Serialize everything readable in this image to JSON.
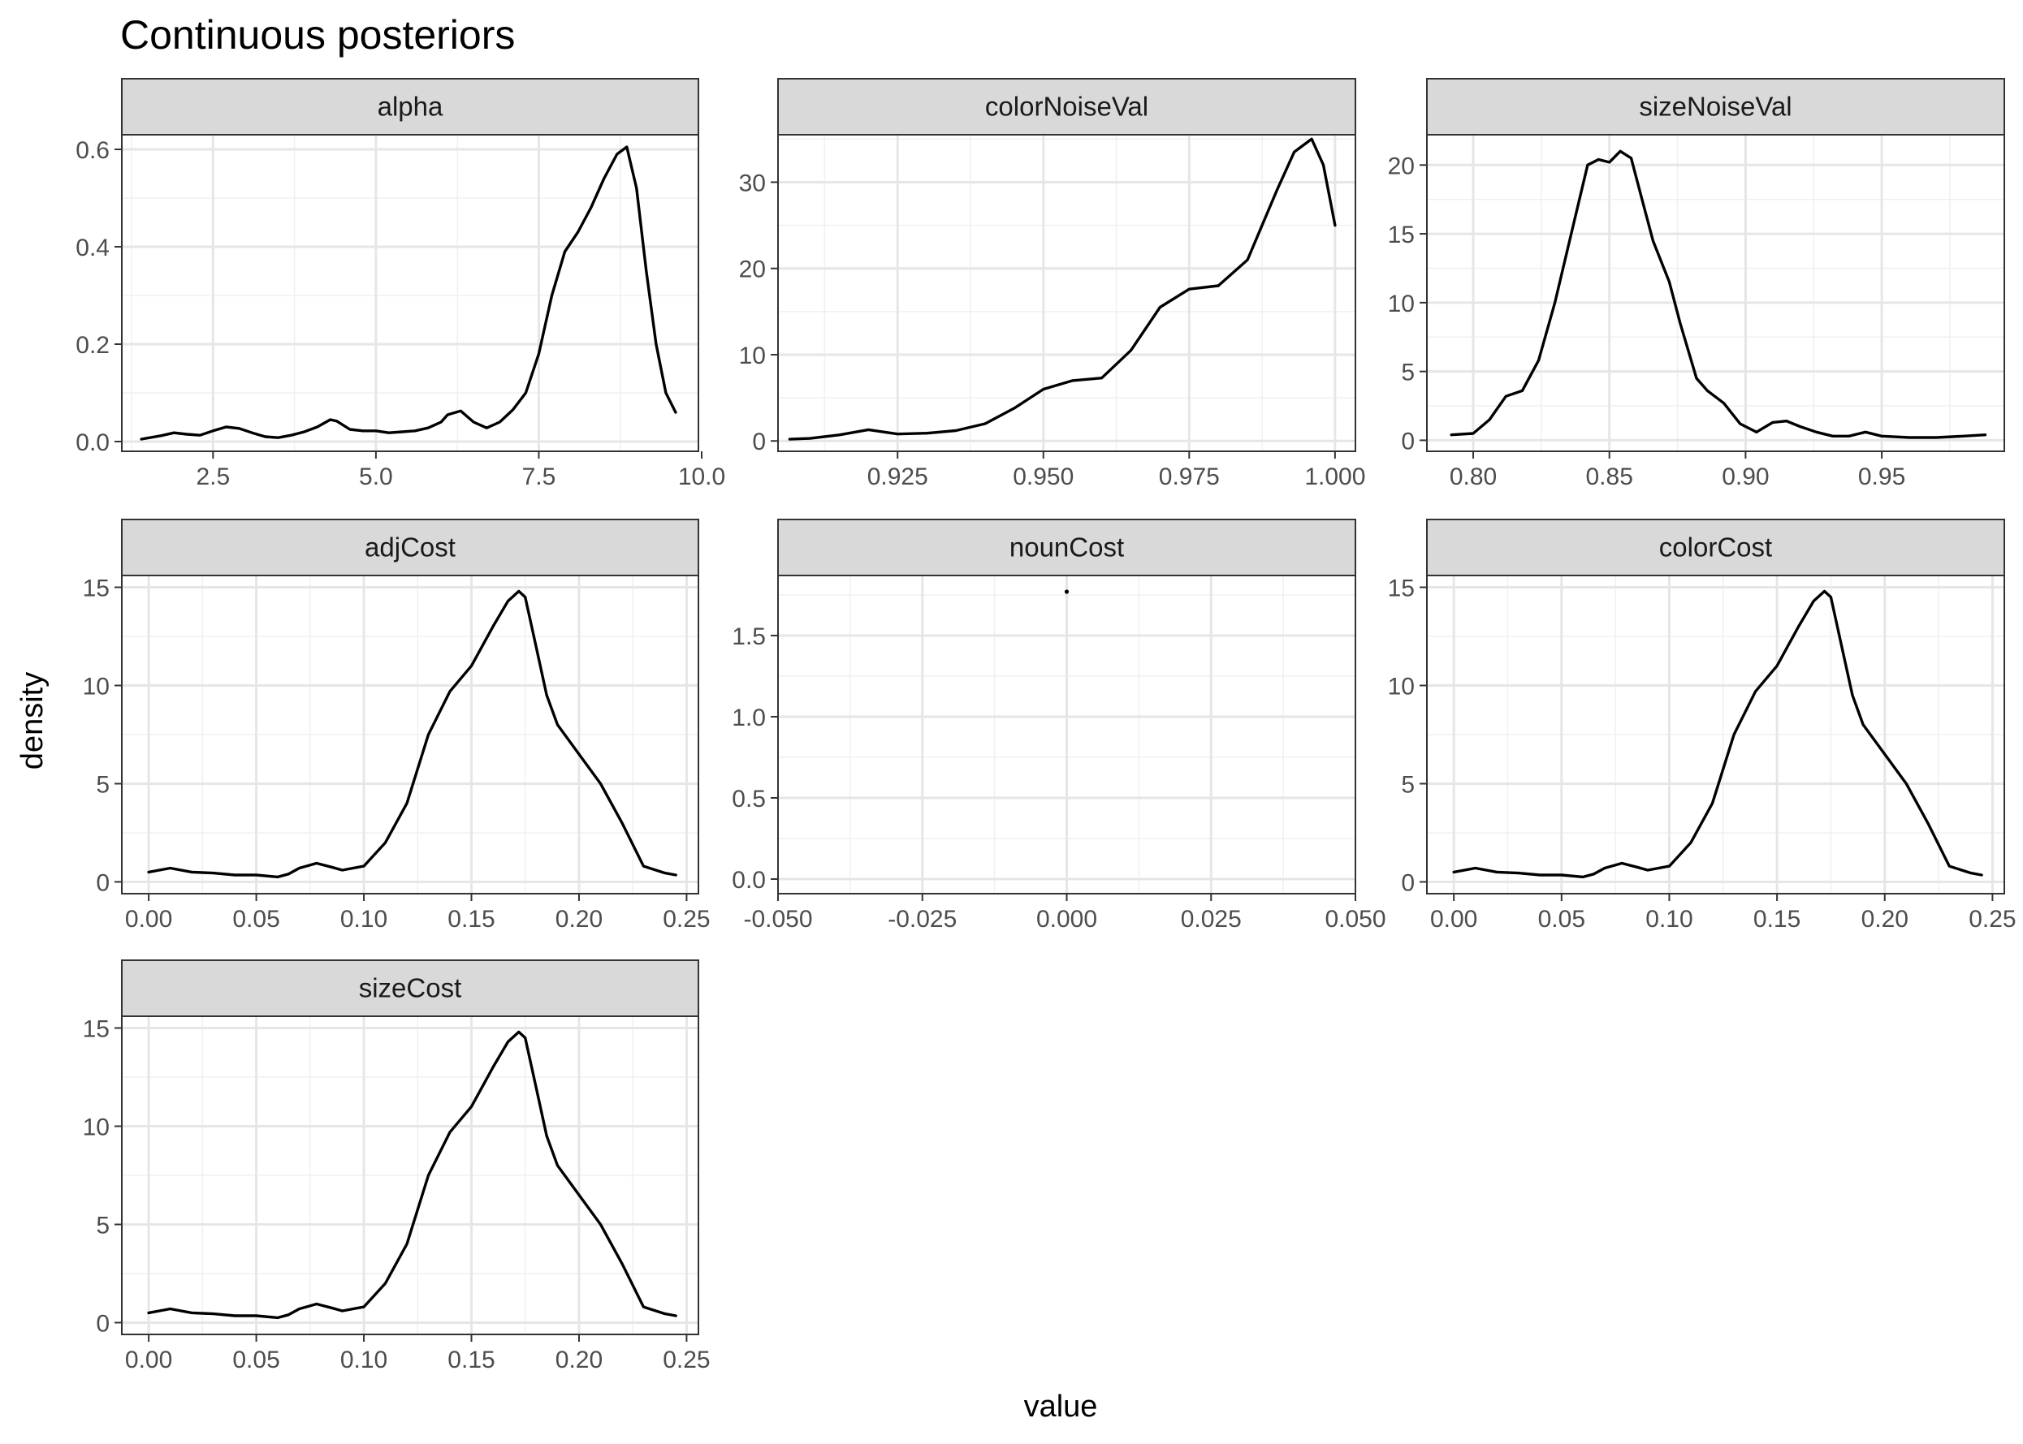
{
  "chart_data": {
    "type": "line",
    "title": "Continuous posteriors",
    "xlabel": "value",
    "ylabel": "density",
    "grid": true,
    "facets": [
      {
        "name": "alpha",
        "xlim": [
          1.1,
          9.95
        ],
        "ylim": [
          -0.02,
          0.63
        ],
        "xticks": [
          2.5,
          5.0,
          7.5,
          10.0
        ],
        "xtick_labels": [
          "2.5",
          "5.0",
          "7.5",
          "10.0"
        ],
        "yticks": [
          0.0,
          0.2,
          0.4,
          0.6
        ],
        "ytick_labels": [
          "0.0",
          "0.2",
          "0.4",
          "0.6"
        ],
        "x": [
          1.4,
          1.7,
          1.9,
          2.1,
          2.3,
          2.5,
          2.7,
          2.9,
          3.1,
          3.3,
          3.5,
          3.7,
          3.9,
          4.1,
          4.3,
          4.4,
          4.6,
          4.8,
          5.0,
          5.2,
          5.4,
          5.6,
          5.8,
          6.0,
          6.1,
          6.3,
          6.5,
          6.7,
          6.9,
          7.1,
          7.3,
          7.5,
          7.7,
          7.9,
          8.1,
          8.3,
          8.5,
          8.7,
          8.85,
          9.0,
          9.15,
          9.3,
          9.45,
          9.6
        ],
        "y": [
          0.005,
          0.012,
          0.018,
          0.015,
          0.013,
          0.022,
          0.03,
          0.027,
          0.018,
          0.01,
          0.008,
          0.013,
          0.02,
          0.03,
          0.045,
          0.042,
          0.025,
          0.022,
          0.022,
          0.018,
          0.02,
          0.022,
          0.028,
          0.04,
          0.055,
          0.063,
          0.04,
          0.028,
          0.04,
          0.065,
          0.1,
          0.18,
          0.3,
          0.39,
          0.43,
          0.48,
          0.54,
          0.59,
          0.605,
          0.52,
          0.35,
          0.2,
          0.1,
          0.06
        ]
      },
      {
        "name": "colorNoiseVal",
        "xlim": [
          0.9045,
          1.0035
        ],
        "ylim": [
          -1.2,
          35.5
        ],
        "xticks": [
          0.925,
          0.95,
          0.975,
          1.0
        ],
        "xtick_labels": [
          "0.925",
          "0.950",
          "0.975",
          "1.000"
        ],
        "yticks": [
          0,
          10,
          20,
          30
        ],
        "ytick_labels": [
          "0",
          "10",
          "20",
          "30"
        ],
        "x": [
          0.9065,
          0.91,
          0.915,
          0.92,
          0.925,
          0.93,
          0.935,
          0.94,
          0.945,
          0.95,
          0.955,
          0.96,
          0.965,
          0.97,
          0.975,
          0.98,
          0.985,
          0.99,
          0.993,
          0.996,
          0.998,
          1.0
        ],
        "y": [
          0.2,
          0.3,
          0.7,
          1.3,
          0.8,
          0.9,
          1.2,
          2.0,
          3.8,
          6.0,
          7.0,
          7.3,
          10.5,
          15.5,
          17.6,
          18.0,
          21.0,
          29.0,
          33.5,
          35.0,
          32.0,
          25.0
        ]
      },
      {
        "name": "sizeNoiseVal",
        "xlim": [
          0.783,
          0.995
        ],
        "ylim": [
          -0.8,
          22.2
        ],
        "xticks": [
          0.8,
          0.85,
          0.9,
          0.95
        ],
        "xtick_labels": [
          "0.80",
          "0.85",
          "0.90",
          "0.95"
        ],
        "yticks": [
          0,
          5,
          10,
          15,
          20
        ],
        "ytick_labels": [
          "0",
          "5",
          "10",
          "15",
          "20"
        ],
        "x": [
          0.792,
          0.8,
          0.806,
          0.812,
          0.818,
          0.824,
          0.83,
          0.836,
          0.842,
          0.846,
          0.85,
          0.854,
          0.858,
          0.862,
          0.866,
          0.872,
          0.876,
          0.882,
          0.886,
          0.892,
          0.898,
          0.904,
          0.91,
          0.915,
          0.92,
          0.926,
          0.932,
          0.938,
          0.944,
          0.95,
          0.96,
          0.97,
          0.98,
          0.988
        ],
        "y": [
          0.4,
          0.5,
          1.5,
          3.2,
          3.6,
          5.8,
          10.0,
          15.0,
          20.0,
          20.4,
          20.2,
          21.0,
          20.5,
          17.5,
          14.5,
          11.5,
          8.5,
          4.5,
          3.6,
          2.7,
          1.2,
          0.6,
          1.3,
          1.4,
          1.0,
          0.6,
          0.3,
          0.3,
          0.6,
          0.3,
          0.2,
          0.2,
          0.3,
          0.4
        ]
      },
      {
        "name": "adjCost",
        "xlim": [
          -0.0125,
          0.2555
        ],
        "ylim": [
          -0.6,
          15.6
        ],
        "xticks": [
          0.0,
          0.05,
          0.1,
          0.15,
          0.2,
          0.25
        ],
        "xtick_labels": [
          "0.00",
          "0.05",
          "0.10",
          "0.15",
          "0.20",
          "0.25"
        ],
        "yticks": [
          0,
          5,
          10,
          15
        ],
        "ytick_labels": [
          "0",
          "5",
          "10",
          "15"
        ],
        "x": [
          0.0,
          0.01,
          0.02,
          0.03,
          0.04,
          0.05,
          0.06,
          0.065,
          0.07,
          0.078,
          0.085,
          0.09,
          0.1,
          0.11,
          0.12,
          0.13,
          0.14,
          0.15,
          0.16,
          0.167,
          0.172,
          0.175,
          0.18,
          0.185,
          0.19,
          0.2,
          0.21,
          0.22,
          0.23,
          0.24,
          0.245
        ],
        "y": [
          0.5,
          0.7,
          0.5,
          0.45,
          0.35,
          0.35,
          0.25,
          0.4,
          0.7,
          0.95,
          0.75,
          0.6,
          0.8,
          2.0,
          4.0,
          7.5,
          9.7,
          11.0,
          13.0,
          14.3,
          14.8,
          14.5,
          12.0,
          9.5,
          8.0,
          6.5,
          5.0,
          3.0,
          0.8,
          0.45,
          0.35
        ]
      },
      {
        "name": "nounCost",
        "xlim": [
          -0.05,
          0.05
        ],
        "ylim": [
          -0.09,
          1.87
        ],
        "xticks": [
          -0.05,
          -0.025,
          0.0,
          0.025,
          0.05
        ],
        "xtick_labels": [
          "-0.050",
          "-0.025",
          "0.000",
          "0.025",
          "0.050"
        ],
        "yticks": [
          0.0,
          0.5,
          1.0,
          1.5
        ],
        "ytick_labels": [
          "0.0",
          "0.5",
          "1.0",
          "1.5"
        ],
        "x": [
          0.0
        ],
        "y": [
          1.77
        ]
      },
      {
        "name": "colorCost",
        "xlim": [
          -0.0125,
          0.2555
        ],
        "ylim": [
          -0.6,
          15.6
        ],
        "xticks": [
          0.0,
          0.05,
          0.1,
          0.15,
          0.2,
          0.25
        ],
        "xtick_labels": [
          "0.00",
          "0.05",
          "0.10",
          "0.15",
          "0.20",
          "0.25"
        ],
        "yticks": [
          0,
          5,
          10,
          15
        ],
        "ytick_labels": [
          "0",
          "5",
          "10",
          "15"
        ],
        "x": [
          0.0,
          0.01,
          0.02,
          0.03,
          0.04,
          0.05,
          0.06,
          0.065,
          0.07,
          0.078,
          0.085,
          0.09,
          0.1,
          0.11,
          0.12,
          0.13,
          0.14,
          0.15,
          0.16,
          0.167,
          0.172,
          0.175,
          0.18,
          0.185,
          0.19,
          0.2,
          0.21,
          0.22,
          0.23,
          0.24,
          0.245
        ],
        "y": [
          0.5,
          0.7,
          0.5,
          0.45,
          0.35,
          0.35,
          0.25,
          0.4,
          0.7,
          0.95,
          0.75,
          0.6,
          0.8,
          2.0,
          4.0,
          7.5,
          9.7,
          11.0,
          13.0,
          14.3,
          14.8,
          14.5,
          12.0,
          9.5,
          8.0,
          6.5,
          5.0,
          3.0,
          0.8,
          0.45,
          0.35
        ]
      },
      {
        "name": "sizeCost",
        "xlim": [
          -0.0125,
          0.2555
        ],
        "ylim": [
          -0.6,
          15.6
        ],
        "xticks": [
          0.0,
          0.05,
          0.1,
          0.15,
          0.2,
          0.25
        ],
        "xtick_labels": [
          "0.00",
          "0.05",
          "0.10",
          "0.15",
          "0.20",
          "0.25"
        ],
        "yticks": [
          0,
          5,
          10,
          15
        ],
        "ytick_labels": [
          "0",
          "5",
          "10",
          "15"
        ],
        "x": [
          0.0,
          0.01,
          0.02,
          0.03,
          0.04,
          0.05,
          0.06,
          0.065,
          0.07,
          0.078,
          0.085,
          0.09,
          0.1,
          0.11,
          0.12,
          0.13,
          0.14,
          0.15,
          0.16,
          0.167,
          0.172,
          0.175,
          0.18,
          0.185,
          0.19,
          0.2,
          0.21,
          0.22,
          0.23,
          0.24,
          0.245
        ],
        "y": [
          0.5,
          0.7,
          0.5,
          0.45,
          0.35,
          0.35,
          0.25,
          0.4,
          0.7,
          0.95,
          0.75,
          0.6,
          0.8,
          2.0,
          4.0,
          7.5,
          9.7,
          11.0,
          13.0,
          14.3,
          14.8,
          14.5,
          12.0,
          9.5,
          8.0,
          6.5,
          5.0,
          3.0,
          0.8,
          0.45,
          0.35
        ]
      }
    ]
  }
}
